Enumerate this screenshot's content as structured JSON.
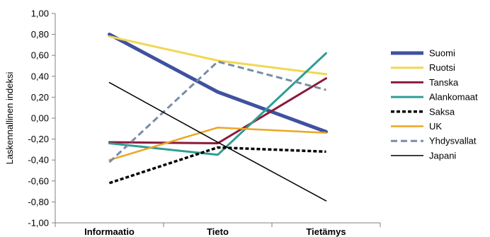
{
  "chart_data": {
    "type": "line",
    "categories": [
      "Informaatio",
      "Tieto",
      "Tietämys"
    ],
    "ylabel": "Laskennallinen indeksi",
    "ylim": [
      -1.0,
      1.0
    ],
    "ytick_step": 0.2,
    "yticks": [
      "1,00",
      "0,80",
      "0,60",
      "0,40",
      "0,20",
      "0,00",
      "-0,20",
      "-0,40",
      "-0,60",
      "-0,80",
      "-1,00"
    ],
    "legend_position": "right",
    "grid": false,
    "series": [
      {
        "name": "Suomi",
        "values": [
          0.8,
          0.25,
          -0.13
        ],
        "color": "#3F51A0",
        "width": 5,
        "dash": "solid"
      },
      {
        "name": "Ruotsi",
        "values": [
          0.78,
          0.55,
          0.42
        ],
        "color": "#F2D752",
        "width": 3,
        "dash": "solid"
      },
      {
        "name": "Tanska",
        "values": [
          -0.23,
          -0.24,
          0.38
        ],
        "color": "#8B1A3B",
        "width": 3,
        "dash": "solid"
      },
      {
        "name": "Alankomaat",
        "values": [
          -0.24,
          -0.35,
          0.62
        ],
        "color": "#2E9E94",
        "width": 3,
        "dash": "solid"
      },
      {
        "name": "Saksa",
        "values": [
          -0.62,
          -0.28,
          -0.32
        ],
        "color": "#000000",
        "width": 3.5,
        "dash": "dotted"
      },
      {
        "name": "UK",
        "values": [
          -0.4,
          -0.09,
          -0.14
        ],
        "color": "#EBA623",
        "width": 2.5,
        "dash": "solid"
      },
      {
        "name": "Yhdysvallat",
        "values": [
          -0.42,
          0.54,
          0.27
        ],
        "color": "#7A8CA5",
        "width": 3,
        "dash": "dashed"
      },
      {
        "name": "Japani",
        "values": [
          0.34,
          -0.23,
          -0.79
        ],
        "color": "#000000",
        "width": 1.5,
        "dash": "solid"
      }
    ]
  }
}
